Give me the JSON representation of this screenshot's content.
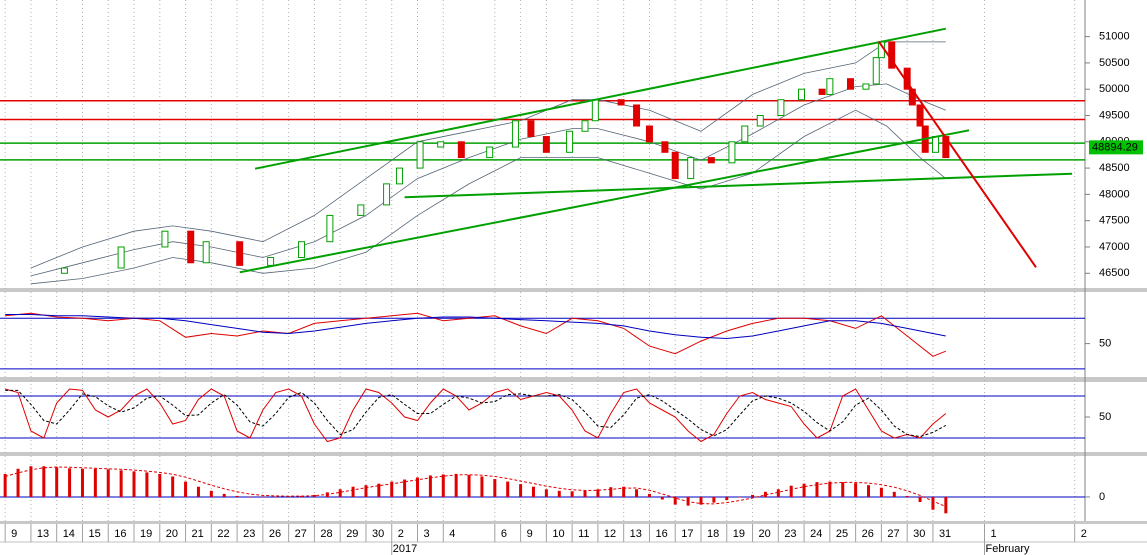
{
  "chart_data": [
    {
      "type": "candlestick",
      "x": [
        2.3,
        4.5,
        6.2,
        7.2,
        7.8,
        9.1,
        10.3,
        11.5,
        12.6,
        13.8,
        14.8,
        15.3,
        16.1,
        16.9,
        17.7,
        18.8,
        19.8,
        20.4,
        21.0,
        21.9,
        22.5,
        22.9,
        23.9,
        24.5,
        25.0,
        25.6,
        26.0,
        26.6,
        27.4,
        28.2,
        28.7,
        29.3,
        30.1,
        30.9,
        31.7,
        32.0,
        32.8,
        33.4,
        33.8,
        34.0,
        34.4,
        35.0,
        35.2,
        35.5,
        35.7,
        36.1,
        36.5
      ],
      "open": [
        46500,
        46600,
        47000,
        47300,
        46700,
        47100,
        46650,
        46800,
        47100,
        47600,
        47800,
        48200,
        48500,
        48900,
        49000,
        48700,
        48900,
        49400,
        49100,
        48800,
        49200,
        49400,
        49800,
        49700,
        49300,
        49000,
        48800,
        48300,
        48700,
        48600,
        49000,
        49300,
        49500,
        49800,
        50000,
        49900,
        50200,
        50000,
        50100,
        50600,
        50900,
        50400,
        50000,
        49700,
        49300,
        48800,
        49100
      ],
      "values": [
        46600,
        47000,
        47300,
        46700,
        47100,
        46650,
        46800,
        47100,
        47600,
        47800,
        48200,
        48500,
        49000,
        49000,
        48700,
        48900,
        49400,
        49100,
        48800,
        49200,
        49400,
        49800,
        49700,
        49300,
        49000,
        48800,
        48300,
        48700,
        48600,
        49000,
        49300,
        49500,
        49800,
        50000,
        49900,
        50200,
        50000,
        50100,
        50600,
        50900,
        50400,
        50000,
        49700,
        49300,
        48800,
        49100,
        48700
      ],
      "up_color": "#00a000",
      "down_color": "#e00000",
      "bands": {
        "color": "#556677",
        "x": [
          1,
          3,
          5,
          6.5,
          8,
          10,
          12,
          14,
          16,
          18,
          20,
          22,
          23,
          25,
          27,
          29,
          31,
          33,
          34.2,
          35.5,
          36.5
        ],
        "upper": [
          46600,
          47000,
          47300,
          47400,
          47300,
          47100,
          47600,
          48300,
          49000,
          49200,
          49400,
          49800,
          49800,
          49600,
          49200,
          49900,
          50300,
          50500,
          50900,
          50900,
          50900
        ],
        "middle": [
          46450,
          46700,
          46950,
          47100,
          47000,
          46800,
          47100,
          47600,
          48300,
          48700,
          49050,
          49250,
          49250,
          49000,
          48650,
          49150,
          49700,
          50050,
          50100,
          49800,
          49600
        ],
        "lower": [
          46300,
          46400,
          46600,
          46800,
          46700,
          46500,
          46600,
          46900,
          47600,
          48200,
          48700,
          48700,
          48700,
          48400,
          48100,
          48400,
          49100,
          49600,
          49300,
          48700,
          48300
        ]
      },
      "levels": [
        {
          "value": 49780,
          "color": "#e00000"
        },
        {
          "value": 49425,
          "color": "#e00000"
        },
        {
          "value": 48975,
          "color": "#00a000"
        },
        {
          "value": 48656,
          "color": "#00a000"
        }
      ],
      "trendlines": [
        {
          "x": [
            9.7,
            36.5
          ],
          "y": [
            48488,
            51150
          ],
          "color": "#00a000"
        },
        {
          "x": [
            9.1,
            37.4
          ],
          "y": [
            46519,
            49219
          ],
          "color": "#00a000"
        },
        {
          "x": [
            15.5,
            41.4
          ],
          "y": [
            47944,
            48394
          ],
          "color": "#00a000"
        },
        {
          "x": [
            33.9,
            40.0
          ],
          "y": [
            50906,
            46613
          ],
          "color": "#e00000"
        }
      ],
      "last_value": 48894.29,
      "last_value_color": "#00c000",
      "ylim": [
        46220,
        51620
      ],
      "yticks": [
        46500,
        47000,
        47500,
        48000,
        48500,
        49000,
        49500,
        50000,
        50500,
        51000
      ],
      "xlim": [
        -0.2,
        41.9
      ],
      "xticks": [
        {
          "value": 0,
          "label": "9"
        },
        {
          "value": 1,
          "label": "13"
        },
        {
          "value": 2,
          "label": "14"
        },
        {
          "value": 3,
          "label": "15"
        },
        {
          "value": 4,
          "label": "16"
        },
        {
          "value": 5,
          "label": "19"
        },
        {
          "value": 6,
          "label": "20"
        },
        {
          "value": 7,
          "label": "21"
        },
        {
          "value": 8,
          "label": "22"
        },
        {
          "value": 9,
          "label": "23"
        },
        {
          "value": 10,
          "label": "26"
        },
        {
          "value": 11,
          "label": "27"
        },
        {
          "value": 12,
          "label": "28"
        },
        {
          "value": 13,
          "label": "29"
        },
        {
          "value": 14,
          "label": "30"
        },
        {
          "value": 15,
          "label": "2"
        },
        {
          "value": 16,
          "label": "3"
        },
        {
          "value": 17,
          "label": "4"
        },
        {
          "value": 19,
          "label": "6"
        },
        {
          "value": 20,
          "label": "9"
        },
        {
          "value": 21,
          "label": "10"
        },
        {
          "value": 22,
          "label": "11"
        },
        {
          "value": 23,
          "label": "12"
        },
        {
          "value": 24,
          "label": "13"
        },
        {
          "value": 25,
          "label": "16"
        },
        {
          "value": 26,
          "label": "17"
        },
        {
          "value": 27,
          "label": "18"
        },
        {
          "value": 28,
          "label": "19"
        },
        {
          "value": 29,
          "label": "20"
        },
        {
          "value": 30,
          "label": "23"
        },
        {
          "value": 31,
          "label": "24"
        },
        {
          "value": 32,
          "label": "25"
        },
        {
          "value": 33,
          "label": "26"
        },
        {
          "value": 34,
          "label": "27"
        },
        {
          "value": 35,
          "label": "30"
        },
        {
          "value": 36,
          "label": "31"
        },
        {
          "value": 38,
          "label": "1"
        },
        {
          "value": 41.5,
          "label": "2"
        }
      ],
      "x_annotations": [
        {
          "value": 15,
          "label": "2017"
        },
        {
          "value": 38,
          "label": "February"
        }
      ],
      "grid": true
    },
    {
      "type": "line",
      "x": [
        0,
        1,
        2,
        3,
        4,
        5,
        6,
        7,
        8,
        9,
        10,
        11,
        12,
        13,
        14,
        15,
        16,
        17,
        18,
        19,
        20,
        21,
        22,
        23,
        24,
        25,
        26,
        27,
        28,
        29,
        30,
        31,
        32,
        33,
        34,
        35,
        36,
        36.5
      ],
      "series": [
        {
          "color": "#e00000",
          "values": [
            72,
            74,
            71,
            70,
            68,
            70,
            68,
            55,
            58,
            56,
            60,
            58,
            66,
            68,
            70,
            72,
            74,
            68,
            70,
            72,
            64,
            58,
            70,
            68,
            62,
            48,
            42,
            52,
            60,
            66,
            70,
            70,
            68,
            62,
            72,
            56,
            40,
            44
          ]
        },
        {
          "color": "#0000c0",
          "values": [
            73,
            73,
            72,
            72,
            71,
            70,
            70,
            68,
            65,
            62,
            59,
            58,
            60,
            63,
            66,
            68,
            70,
            71,
            71,
            70,
            69,
            68,
            67,
            66,
            64,
            60,
            57,
            55,
            54,
            56,
            60,
            64,
            68,
            68,
            66,
            62,
            58,
            56
          ]
        }
      ],
      "levels": [
        {
          "value": 70,
          "color": "#0000c0"
        },
        {
          "value": 30,
          "color": "#0000c0"
        }
      ],
      "ylim": [
        23.6,
        90.8
      ],
      "yticks": [
        50
      ]
    },
    {
      "type": "line",
      "x": [
        0,
        0.5,
        1,
        1.5,
        2,
        2.5,
        3,
        3.5,
        4,
        4.5,
        5,
        5.5,
        6,
        6.5,
        7,
        7.5,
        8,
        8.5,
        9,
        9.5,
        10,
        10.5,
        11,
        11.5,
        12,
        12.5,
        13,
        13.5,
        14,
        14.5,
        15,
        15.5,
        16,
        16.5,
        17,
        17.5,
        18,
        18.5,
        19,
        19.5,
        20,
        20.5,
        21,
        21.5,
        22,
        22.5,
        23,
        23.5,
        24,
        24.5,
        25,
        25.5,
        26,
        26.5,
        27,
        27.5,
        28,
        28.5,
        29,
        29.5,
        30,
        30.5,
        31,
        31.5,
        32,
        32.5,
        33,
        33.5,
        34,
        34.5,
        35,
        35.5,
        36,
        36.5
      ],
      "series": [
        {
          "color": "#e00000",
          "values": [
            90,
            85,
            30,
            20,
            70,
            90,
            88,
            60,
            50,
            60,
            80,
            90,
            70,
            40,
            45,
            75,
            90,
            80,
            30,
            20,
            60,
            85,
            90,
            80,
            40,
            15,
            20,
            60,
            90,
            85,
            70,
            50,
            45,
            70,
            90,
            80,
            60,
            70,
            85,
            90,
            75,
            80,
            85,
            80,
            60,
            30,
            20,
            55,
            85,
            90,
            70,
            60,
            50,
            30,
            15,
            25,
            55,
            80,
            85,
            75,
            70,
            65,
            40,
            20,
            30,
            80,
            90,
            60,
            30,
            20,
            25,
            20,
            40,
            55
          ]
        },
        {
          "color": "#000000",
          "dash": true,
          "values": [
            88,
            88,
            68,
            45,
            40,
            60,
            83,
            79,
            66,
            57,
            63,
            77,
            80,
            67,
            52,
            53,
            70,
            82,
            67,
            43,
            37,
            55,
            78,
            85,
            70,
            45,
            25,
            32,
            57,
            78,
            82,
            68,
            55,
            55,
            68,
            80,
            77,
            70,
            72,
            82,
            83,
            80,
            80,
            82,
            75,
            57,
            37,
            35,
            53,
            77,
            82,
            73,
            60,
            47,
            32,
            23,
            32,
            53,
            73,
            80,
            77,
            70,
            58,
            42,
            30,
            43,
            67,
            77,
            60,
            37,
            25,
            22,
            28,
            38
          ]
        }
      ],
      "levels": [
        {
          "value": 80,
          "color": "#0000c0"
        },
        {
          "value": 20,
          "color": "#0000c0"
        }
      ],
      "ylim": [
        0,
        100
      ],
      "yticks": [
        50
      ]
    },
    {
      "type": "bar",
      "x": [
        0,
        0.5,
        1,
        1.5,
        2,
        2.5,
        3,
        3.5,
        4,
        4.5,
        5,
        5.5,
        6,
        6.5,
        7,
        7.5,
        8,
        8.5,
        9,
        9.5,
        10,
        10.5,
        11,
        11.5,
        12,
        12.5,
        13,
        13.5,
        14,
        14.5,
        15,
        15.5,
        16,
        16.5,
        17,
        17.5,
        18,
        18.5,
        19,
        19.5,
        20,
        20.5,
        21,
        21.5,
        22,
        22.5,
        23,
        23.5,
        24,
        24.5,
        25,
        25.5,
        26,
        26.5,
        27,
        27.5,
        28,
        28.5,
        29,
        29.5,
        30,
        30.5,
        31,
        31.5,
        32,
        32.5,
        33,
        33.5,
        34,
        34.5,
        35,
        35.5,
        36,
        36.5
      ],
      "values": [
        450,
        550,
        600,
        600,
        580,
        560,
        550,
        550,
        540,
        520,
        500,
        480,
        450,
        400,
        300,
        200,
        120,
        60,
        20,
        10,
        10,
        10,
        15,
        20,
        40,
        90,
        150,
        200,
        230,
        260,
        300,
        340,
        380,
        420,
        440,
        450,
        430,
        400,
        350,
        300,
        250,
        200,
        150,
        120,
        110,
        120,
        150,
        190,
        200,
        150,
        60,
        -50,
        -150,
        -170,
        -150,
        -110,
        -60,
        -10,
        40,
        100,
        150,
        220,
        260,
        290,
        300,
        290,
        270,
        230,
        180,
        100,
        20,
        -100,
        -250,
        -320
      ],
      "color": "#e00000",
      "series": [
        {
          "color": "#e00000",
          "dash": true,
          "values": [
            400,
            470,
            530,
            570,
            585,
            580,
            570,
            560,
            550,
            540,
            525,
            505,
            480,
            445,
            385,
            310,
            230,
            160,
            100,
            55,
            30,
            20,
            15,
            16,
            25,
            50,
            90,
            135,
            180,
            220,
            255,
            295,
            335,
            375,
            405,
            430,
            435,
            425,
            400,
            360,
            310,
            260,
            210,
            170,
            140,
            125,
            130,
            150,
            170,
            175,
            130,
            60,
            -20,
            -90,
            -130,
            -135,
            -110,
            -70,
            -20,
            40,
            90,
            150,
            200,
            240,
            270,
            285,
            285,
            270,
            240,
            190,
            120,
            30,
            -80,
            -190
          ]
        }
      ],
      "levels": [
        {
          "value": 0,
          "color": "#0000c0"
        }
      ],
      "ylim": [
        -470,
        800
      ],
      "yticks": [
        0
      ]
    }
  ]
}
